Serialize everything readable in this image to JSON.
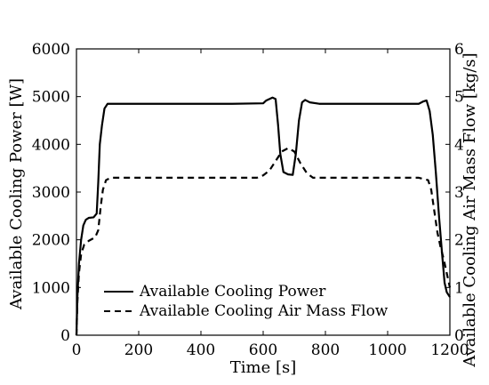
{
  "chart_data": {
    "type": "line",
    "title": "",
    "xlabel": "Time [s]",
    "ylabel_left": "Available Cooling Power [W]",
    "ylabel_right": "Available Cooling Air Mass Flow [kg/s]",
    "xlim": [
      0,
      1200
    ],
    "ylim_left": [
      0,
      6000
    ],
    "ylim_right": [
      0,
      6
    ],
    "x_ticks": [
      0,
      200,
      400,
      600,
      800,
      1000,
      1200
    ],
    "y_ticks_left": [
      0,
      1000,
      2000,
      3000,
      4000,
      5000,
      6000
    ],
    "y_ticks_right": [
      0,
      1,
      2,
      3,
      4,
      5,
      6
    ],
    "grid": false,
    "legend_position": "bottom-left",
    "series": [
      {
        "name": "Available Cooling Power",
        "axis": "left",
        "style": "solid",
        "color": "#000000",
        "points": [
          [
            0,
            0
          ],
          [
            3,
            800
          ],
          [
            8,
            1500
          ],
          [
            15,
            2000
          ],
          [
            22,
            2300
          ],
          [
            30,
            2420
          ],
          [
            40,
            2460
          ],
          [
            55,
            2470
          ],
          [
            65,
            2550
          ],
          [
            70,
            3200
          ],
          [
            75,
            4000
          ],
          [
            82,
            4400
          ],
          [
            90,
            4750
          ],
          [
            100,
            4850
          ],
          [
            110,
            4850
          ],
          [
            300,
            4850
          ],
          [
            500,
            4850
          ],
          [
            600,
            4860
          ],
          [
            610,
            4920
          ],
          [
            630,
            4980
          ],
          [
            640,
            4950
          ],
          [
            648,
            4400
          ],
          [
            655,
            3800
          ],
          [
            665,
            3420
          ],
          [
            680,
            3370
          ],
          [
            695,
            3360
          ],
          [
            705,
            3800
          ],
          [
            715,
            4500
          ],
          [
            725,
            4880
          ],
          [
            735,
            4930
          ],
          [
            750,
            4880
          ],
          [
            780,
            4850
          ],
          [
            900,
            4850
          ],
          [
            1100,
            4850
          ],
          [
            1115,
            4900
          ],
          [
            1125,
            4920
          ],
          [
            1135,
            4700
          ],
          [
            1145,
            4200
          ],
          [
            1155,
            3400
          ],
          [
            1165,
            2500
          ],
          [
            1175,
            1700
          ],
          [
            1183,
            1100
          ],
          [
            1190,
            900
          ],
          [
            1200,
            800
          ]
        ]
      },
      {
        "name": "Available Cooling Air Mass Flow",
        "axis": "right",
        "style": "dashed",
        "color": "#000000",
        "points": [
          [
            0,
            0
          ],
          [
            3,
            0.7
          ],
          [
            8,
            1.3
          ],
          [
            15,
            1.7
          ],
          [
            25,
            1.9
          ],
          [
            40,
            1.98
          ],
          [
            60,
            2.05
          ],
          [
            70,
            2.2
          ],
          [
            78,
            2.7
          ],
          [
            85,
            3.05
          ],
          [
            95,
            3.25
          ],
          [
            110,
            3.3
          ],
          [
            300,
            3.3
          ],
          [
            500,
            3.3
          ],
          [
            580,
            3.3
          ],
          [
            600,
            3.35
          ],
          [
            620,
            3.45
          ],
          [
            640,
            3.65
          ],
          [
            660,
            3.85
          ],
          [
            680,
            3.92
          ],
          [
            700,
            3.85
          ],
          [
            720,
            3.6
          ],
          [
            740,
            3.4
          ],
          [
            760,
            3.3
          ],
          [
            900,
            3.3
          ],
          [
            1100,
            3.3
          ],
          [
            1130,
            3.25
          ],
          [
            1140,
            3.05
          ],
          [
            1150,
            2.6
          ],
          [
            1160,
            2.15
          ],
          [
            1170,
            1.85
          ],
          [
            1180,
            1.6
          ],
          [
            1190,
            1.3
          ],
          [
            1200,
            1.0
          ]
        ]
      }
    ]
  }
}
